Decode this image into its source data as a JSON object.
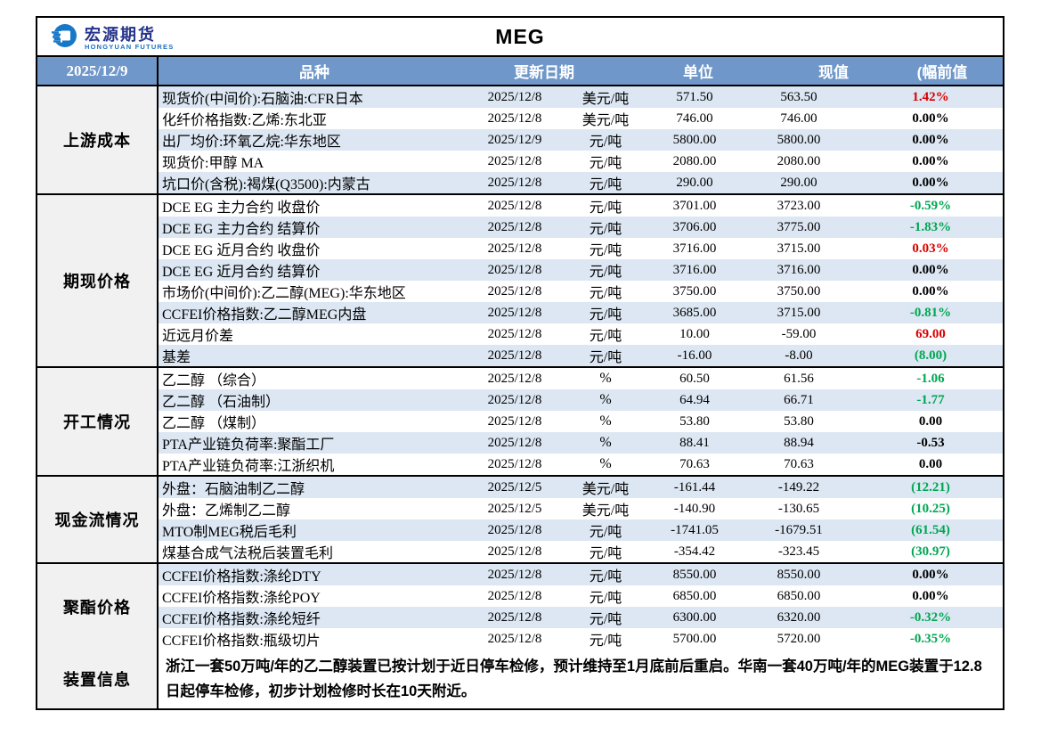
{
  "page": {
    "title": "MEG",
    "report_date": "2025/12/9"
  },
  "logo": {
    "company_cn": "宏源期货",
    "company_en": "HONGYUAN FUTURES"
  },
  "columns": {
    "product": "品种",
    "update_date": "更新日期",
    "unit": "单位",
    "current": "现值",
    "prev_change": "(幅前值"
  },
  "sections": [
    {
      "label": "上游成本",
      "rows": [
        {
          "name": "现货价(中间价):石脑油:CFR日本",
          "date": "2025/12/8",
          "unit": "美元/吨",
          "current": "571.50",
          "prev": "563.50",
          "change": "1.42%",
          "change_color": "red"
        },
        {
          "name": "化纤价格指数:乙烯:东北亚",
          "date": "2025/12/8",
          "unit": "美元/吨",
          "current": "746.00",
          "prev": "746.00",
          "change": "0.00%",
          "change_color": "black"
        },
        {
          "name": "出厂均价:环氧乙烷:华东地区",
          "date": "2025/12/9",
          "unit": "元/吨",
          "current": "5800.00",
          "prev": "5800.00",
          "change": "0.00%",
          "change_color": "black"
        },
        {
          "name": "现货价:甲醇 MA",
          "date": "2025/12/8",
          "unit": "元/吨",
          "current": "2080.00",
          "prev": "2080.00",
          "change": "0.00%",
          "change_color": "black"
        },
        {
          "name": "坑口价(含税):褐煤(Q3500):内蒙古",
          "date": "2025/12/8",
          "unit": "元/吨",
          "current": "290.00",
          "prev": "290.00",
          "change": "0.00%",
          "change_color": "black"
        }
      ]
    },
    {
      "label": "期现价格",
      "rows": [
        {
          "name": "DCE EG 主力合约 收盘价",
          "date": "2025/12/8",
          "unit": "元/吨",
          "current": "3701.00",
          "prev": "3723.00",
          "change": "-0.59%",
          "change_color": "green"
        },
        {
          "name": "DCE EG 主力合约 结算价",
          "date": "2025/12/8",
          "unit": "元/吨",
          "current": "3706.00",
          "prev": "3775.00",
          "change": "-1.83%",
          "change_color": "green"
        },
        {
          "name": "DCE EG 近月合约 收盘价",
          "date": "2025/12/8",
          "unit": "元/吨",
          "current": "3716.00",
          "prev": "3715.00",
          "change": "0.03%",
          "change_color": "red"
        },
        {
          "name": "DCE EG 近月合约 结算价",
          "date": "2025/12/8",
          "unit": "元/吨",
          "current": "3716.00",
          "prev": "3716.00",
          "change": "0.00%",
          "change_color": "black"
        },
        {
          "name": "市场价(中间价):乙二醇(MEG):华东地区",
          "date": "2025/12/8",
          "unit": "元/吨",
          "current": "3750.00",
          "prev": "3750.00",
          "change": "0.00%",
          "change_color": "black"
        },
        {
          "name": "CCFEI价格指数:乙二醇MEG内盘",
          "date": "2025/12/8",
          "unit": "元/吨",
          "current": "3685.00",
          "prev": "3715.00",
          "change": "-0.81%",
          "change_color": "green"
        },
        {
          "name": "近远月价差",
          "date": "2025/12/8",
          "unit": "元/吨",
          "current": "10.00",
          "prev": "-59.00",
          "change": "69.00",
          "change_color": "red"
        },
        {
          "name": "基差",
          "date": "2025/12/8",
          "unit": "元/吨",
          "current": "-16.00",
          "prev": "-8.00",
          "change": "(8.00)",
          "change_color": "green"
        }
      ]
    },
    {
      "label": "开工情况",
      "rows": [
        {
          "name": "乙二醇 （综合）",
          "date": "2025/12/8",
          "unit": "%",
          "current": "60.50",
          "prev": "61.56",
          "change": "-1.06",
          "change_color": "green"
        },
        {
          "name": "乙二醇 （石油制）",
          "date": "2025/12/8",
          "unit": "%",
          "current": "64.94",
          "prev": "66.71",
          "change": "-1.77",
          "change_color": "green"
        },
        {
          "name": "乙二醇 （煤制）",
          "date": "2025/12/8",
          "unit": "%",
          "current": "53.80",
          "prev": "53.80",
          "change": "0.00",
          "change_color": "black"
        },
        {
          "name": "PTA产业链负荷率:聚酯工厂",
          "date": "2025/12/8",
          "unit": "%",
          "current": "88.41",
          "prev": "88.94",
          "change": "-0.53",
          "change_color": "black"
        },
        {
          "name": "PTA产业链负荷率:江浙织机",
          "date": "2025/12/8",
          "unit": "%",
          "current": "70.63",
          "prev": "70.63",
          "change": "0.00",
          "change_color": "black"
        }
      ]
    },
    {
      "label": "现金流情况",
      "rows": [
        {
          "name": "外盘：石脑油制乙二醇",
          "date": "2025/12/5",
          "unit": "美元/吨",
          "current": "-161.44",
          "prev": "-149.22",
          "change": "(12.21)",
          "change_color": "green"
        },
        {
          "name": "外盘：乙烯制乙二醇",
          "date": "2025/12/5",
          "unit": "美元/吨",
          "current": "-140.90",
          "prev": "-130.65",
          "change": "(10.25)",
          "change_color": "green"
        },
        {
          "name": "MTO制MEG税后毛利",
          "date": "2025/12/8",
          "unit": "元/吨",
          "current": "-1741.05",
          "prev": "-1679.51",
          "change": "(61.54)",
          "change_color": "green"
        },
        {
          "name": "煤基合成气法税后装置毛利",
          "date": "2025/12/8",
          "unit": "元/吨",
          "current": "-354.42",
          "prev": "-323.45",
          "change": "(30.97)",
          "change_color": "green"
        }
      ]
    },
    {
      "label": "聚酯价格",
      "rows": [
        {
          "name": "CCFEI价格指数:涤纶DTY",
          "date": "2025/12/8",
          "unit": "元/吨",
          "current": "8550.00",
          "prev": "8550.00",
          "change": "0.00%",
          "change_color": "black"
        },
        {
          "name": "CCFEI价格指数:涤纶POY",
          "date": "2025/12/8",
          "unit": "元/吨",
          "current": "6850.00",
          "prev": "6850.00",
          "change": "0.00%",
          "change_color": "black"
        },
        {
          "name": "CCFEI价格指数:涤纶短纤",
          "date": "2025/12/8",
          "unit": "元/吨",
          "current": "6300.00",
          "prev": "6320.00",
          "change": "-0.32%",
          "change_color": "green"
        },
        {
          "name": "CCFEI价格指数:瓶级切片",
          "date": "2025/12/8",
          "unit": "元/吨",
          "current": "5700.00",
          "prev": "5720.00",
          "change": "-0.35%",
          "change_color": "green"
        }
      ]
    }
  ],
  "notes": {
    "label": "装置信息",
    "text": "浙江一套50万吨/年的乙二醇装置已按计划于近日停车检修，预计维持至1月底前后重启。华南一套40万吨/年的MEG装置于12.8日起停车检修，初步计划检修时长在10天附近。"
  },
  "colors": {
    "header_bg": "#6F97C9",
    "row_alt_bg": "#DCE7F3",
    "sidebar_bg": "#F1F1F1",
    "up_red": "#D80000",
    "down_green": "#00A651",
    "logo_blue": "#1878C8"
  }
}
